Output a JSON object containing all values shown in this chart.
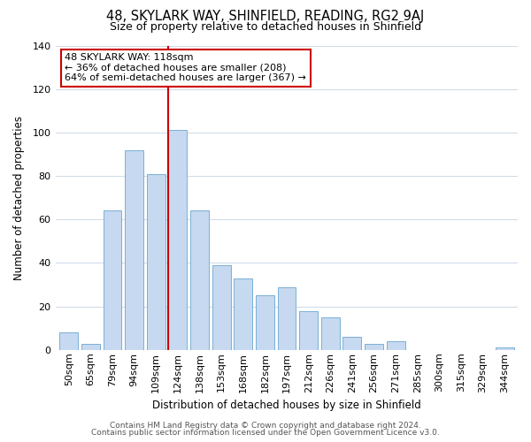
{
  "title": "48, SKYLARK WAY, SHINFIELD, READING, RG2 9AJ",
  "subtitle": "Size of property relative to detached houses in Shinfield",
  "xlabel": "Distribution of detached houses by size in Shinfield",
  "ylabel": "Number of detached properties",
  "categories": [
    "50sqm",
    "65sqm",
    "79sqm",
    "94sqm",
    "109sqm",
    "124sqm",
    "138sqm",
    "153sqm",
    "168sqm",
    "182sqm",
    "197sqm",
    "212sqm",
    "226sqm",
    "241sqm",
    "256sqm",
    "271sqm",
    "285sqm",
    "300sqm",
    "315sqm",
    "329sqm",
    "344sqm"
  ],
  "values": [
    8,
    3,
    64,
    92,
    81,
    101,
    64,
    39,
    33,
    25,
    29,
    18,
    15,
    6,
    3,
    4,
    0,
    0,
    0,
    0,
    1
  ],
  "bar_color": "#c6d9f0",
  "bar_edge_color": "#7ab0d4",
  "vline_color": "#cc0000",
  "vline_x_index": 5,
  "ylim": [
    0,
    140
  ],
  "yticks": [
    0,
    20,
    40,
    60,
    80,
    100,
    120,
    140
  ],
  "annotation_title": "48 SKYLARK WAY: 118sqm",
  "annotation_line1": "← 36% of detached houses are smaller (208)",
  "annotation_line2": "64% of semi-detached houses are larger (367) →",
  "footer1": "Contains HM Land Registry data © Crown copyright and database right 2024.",
  "footer2": "Contains public sector information licensed under the Open Government Licence v3.0.",
  "background_color": "#ffffff",
  "grid_color": "#d0dcea",
  "title_fontsize": 10.5,
  "subtitle_fontsize": 9,
  "axis_label_fontsize": 8.5,
  "tick_fontsize": 8,
  "footer_fontsize": 6.5
}
